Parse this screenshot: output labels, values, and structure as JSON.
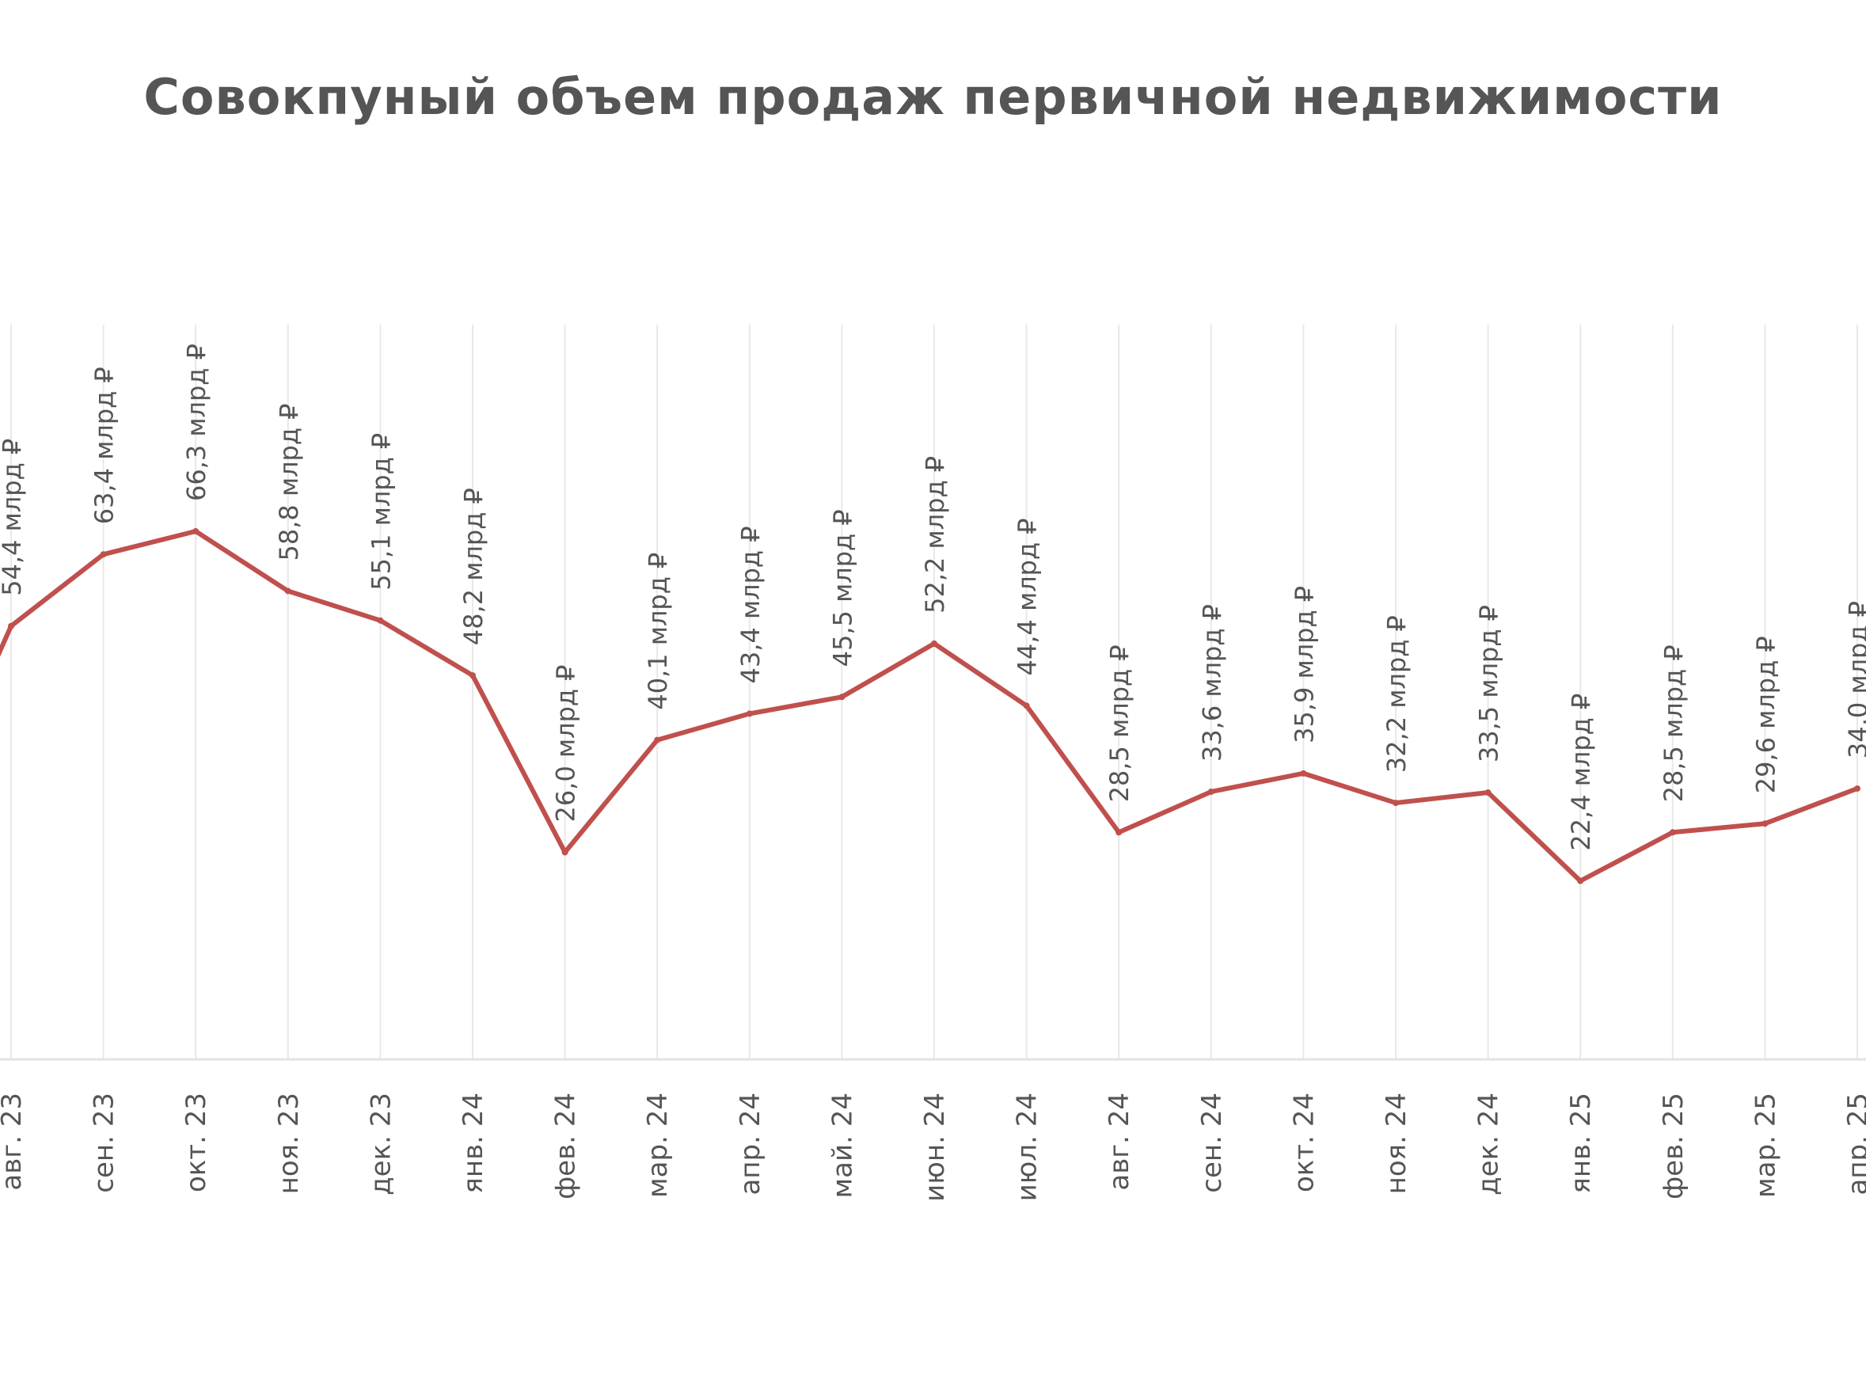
{
  "chart_data": {
    "type": "line",
    "title": "Совокпуный объем продаж первичной недвижимости",
    "xlabel": "",
    "ylabel": "",
    "ylim": [
      0,
      75
    ],
    "grid": "vertical",
    "legend": "none",
    "line_color": "#c0504d",
    "grid_color": "#e8e8e8",
    "categories": [
      "авг. 23",
      "сен. 23",
      "окт. 23",
      "ноя. 23",
      "дек. 23",
      "янв. 24",
      "фев. 24",
      "мар. 24",
      "апр. 24",
      "май. 24",
      "июн. 24",
      "июл. 24",
      "авг. 24",
      "сен. 24",
      "окт. 24",
      "ноя. 24",
      "дек. 24",
      "янв. 25",
      "фев. 25",
      "мар. 25",
      "апр. 25"
    ],
    "series": [
      {
        "values": [
          54.4,
          63.4,
          66.3,
          58.8,
          55.1,
          48.2,
          26.0,
          40.1,
          43.4,
          45.5,
          52.2,
          44.4,
          28.5,
          33.6,
          35.9,
          32.2,
          33.5,
          22.4,
          28.5,
          29.6,
          34.0
        ],
        "labels": [
          "54,4 млрд ₽",
          "63,4 млрд ₽",
          "66,3 млрд ₽",
          "58,8 млрд ₽",
          "55,1 млрд ₽",
          "48,2 млрд ₽",
          "26,0 млрд ₽",
          "40,1 млрд ₽",
          "43,4 млрд ₽",
          "45,5 млрд ₽",
          "52,2 млрд ₽",
          "44,4 млрд ₽",
          "28,5 млрд ₽",
          "33,6 млрд ₽",
          "35,9 млрд ₽",
          "32,2 млрд ₽",
          "33,5 млрд ₽",
          "22,4 млрд ₽",
          "28,5 млрд ₽",
          "29,6 млрд ₽",
          "34,0 млрд ₽"
        ]
      }
    ]
  }
}
